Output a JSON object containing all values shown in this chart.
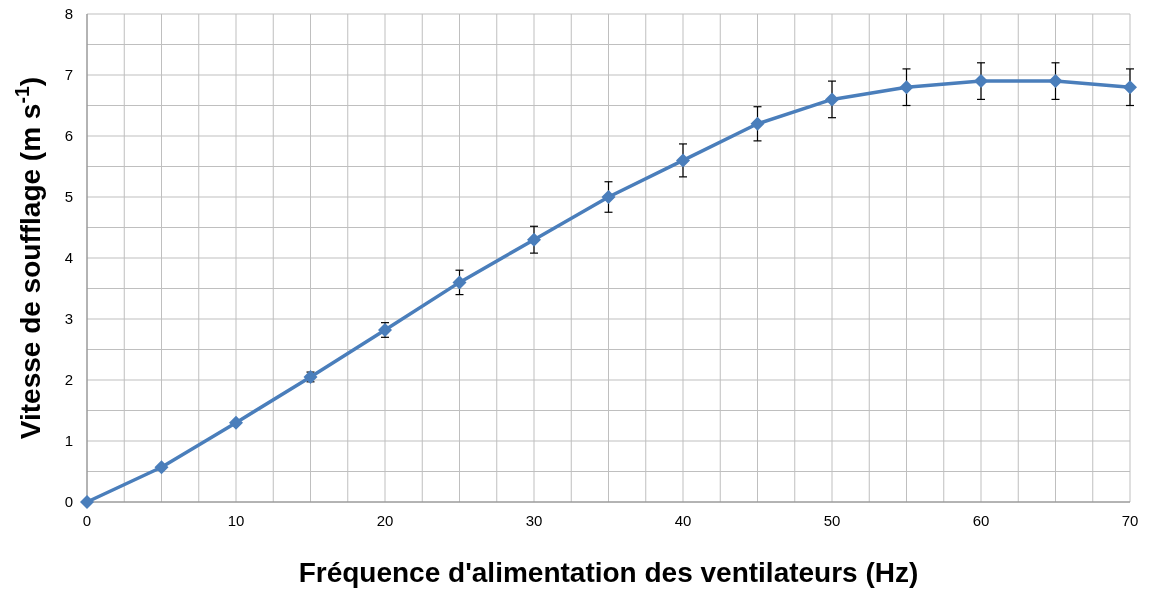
{
  "chart_data": {
    "type": "line",
    "xlabel": "Fréquence d'alimentation des ventilateurs (Hz)",
    "ylabel": "Vitesse de soufflage (m s$^{-1}$)",
    "x": [
      0,
      5,
      10,
      15,
      20,
      25,
      30,
      35,
      40,
      45,
      50,
      55,
      60,
      65,
      70
    ],
    "series": [
      {
        "color": "#4a7ebb",
        "values": [
          0,
          0.57,
          1.3,
          2.05,
          2.82,
          3.6,
          4.3,
          5.0,
          5.6,
          6.2,
          6.6,
          6.8,
          6.9,
          6.9,
          6.8
        ],
        "errors": [
          null,
          null,
          null,
          0.08,
          0.12,
          0.2,
          0.22,
          0.25,
          0.27,
          0.28,
          0.3,
          0.3,
          0.3,
          0.3,
          0.3
        ]
      }
    ],
    "xlim": [
      0,
      70
    ],
    "xticks": [
      0,
      10,
      20,
      30,
      40,
      50,
      60,
      70
    ],
    "ylim": [
      0,
      8
    ],
    "yticks": [
      0,
      1,
      2,
      3,
      4,
      5,
      6,
      7,
      8
    ],
    "grid": true,
    "marker": "diamond",
    "line_style": "solid"
  }
}
